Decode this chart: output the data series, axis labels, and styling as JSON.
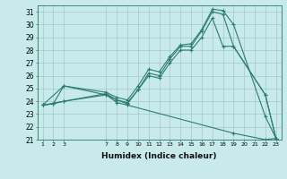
{
  "xlabel": "Humidex (Indice chaleur)",
  "bg_color": "#c8eaea",
  "line_color": "#2d7d6e",
  "grid_color": "#a0c8c8",
  "ylim": [
    21,
    31.5
  ],
  "yticks": [
    21,
    22,
    23,
    24,
    25,
    26,
    27,
    28,
    29,
    30,
    31
  ],
  "xticks": [
    1,
    2,
    3,
    7,
    8,
    9,
    10,
    11,
    12,
    13,
    14,
    15,
    16,
    17,
    18,
    19,
    20,
    21,
    22,
    23
  ],
  "xlim": [
    0.5,
    23.5
  ],
  "lines": [
    {
      "x": [
        1,
        2,
        3,
        7,
        8,
        9,
        10,
        11,
        12,
        13,
        14,
        15,
        16,
        17,
        18,
        19,
        22,
        23
      ],
      "y": [
        23.7,
        23.8,
        25.2,
        24.7,
        24.3,
        24.1,
        25.2,
        26.5,
        26.3,
        27.5,
        28.4,
        28.5,
        29.6,
        31.2,
        31.1,
        30.0,
        22.8,
        21.1
      ]
    },
    {
      "x": [
        1,
        2,
        3,
        7,
        8,
        9,
        10,
        11,
        12,
        13,
        14,
        15,
        16,
        17,
        18,
        19,
        22,
        23
      ],
      "y": [
        23.7,
        23.8,
        24.0,
        24.5,
        24.1,
        23.9,
        24.9,
        26.2,
        26.0,
        27.3,
        28.3,
        28.3,
        29.5,
        31.0,
        30.8,
        28.3,
        24.5,
        21.1
      ]
    },
    {
      "x": [
        1,
        3,
        7,
        8,
        9,
        10,
        11,
        12,
        13,
        14,
        15,
        16,
        17,
        18,
        19,
        22,
        23
      ],
      "y": [
        23.7,
        24.0,
        24.6,
        24.1,
        23.8,
        24.9,
        26.0,
        25.8,
        27.0,
        28.0,
        28.0,
        29.0,
        30.5,
        28.3,
        28.3,
        24.5,
        21.1
      ]
    },
    {
      "x": [
        1,
        3,
        7,
        8,
        9,
        19,
        22,
        23
      ],
      "y": [
        23.7,
        25.2,
        24.5,
        23.9,
        23.7,
        21.5,
        21.0,
        21.1
      ]
    }
  ]
}
